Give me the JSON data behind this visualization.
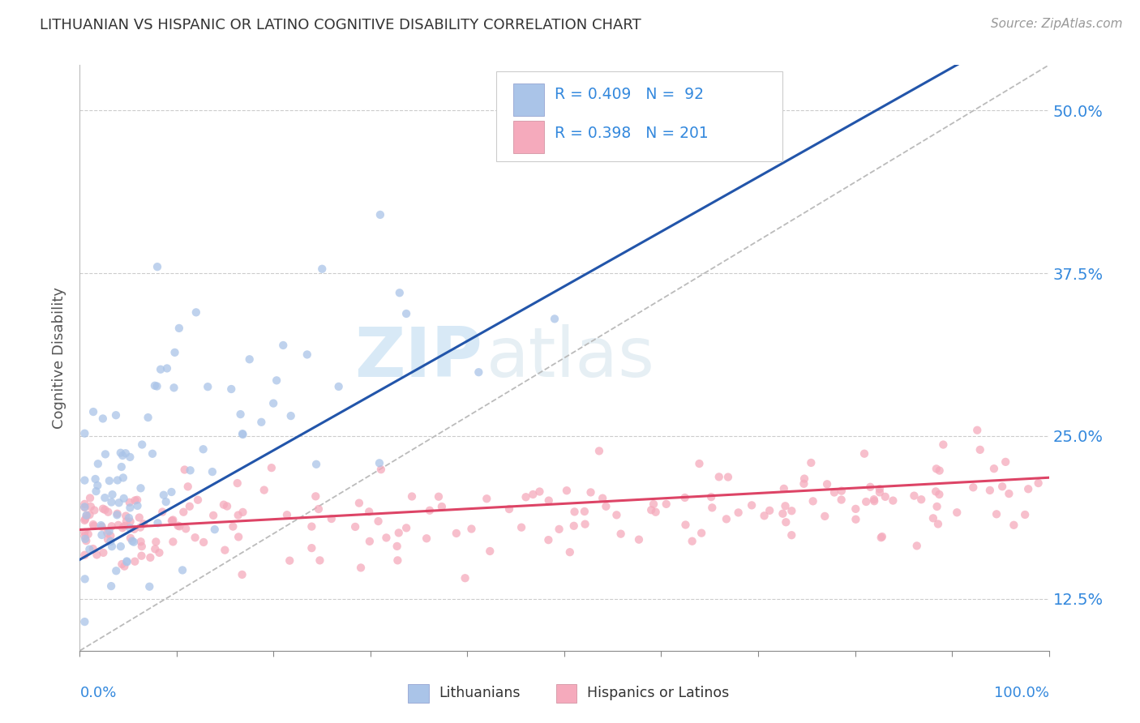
{
  "title": "LITHUANIAN VS HISPANIC OR LATINO COGNITIVE DISABILITY CORRELATION CHART",
  "source": "Source: ZipAtlas.com",
  "ylabel": "Cognitive Disability",
  "legend_R": [
    0.409,
    0.398
  ],
  "legend_N": [
    92,
    201
  ],
  "color_blue": "#aac4e8",
  "color_pink": "#f5aabc",
  "line_color_blue": "#2255aa",
  "line_color_pink": "#dd4466",
  "axis_label_color": "#3388dd",
  "xlim": [
    0.0,
    1.0
  ],
  "ylim": [
    0.085,
    0.535
  ],
  "yticks": [
    0.125,
    0.25,
    0.375,
    0.5
  ],
  "ytick_labels": [
    "12.5%",
    "25.0%",
    "37.5%",
    "50.0%"
  ]
}
